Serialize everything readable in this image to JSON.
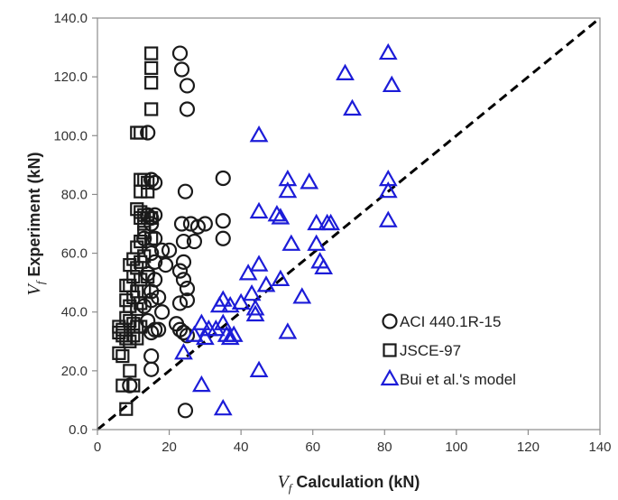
{
  "chart_data": {
    "type": "scatter",
    "title": "",
    "xlabel": {
      "var": "V",
      "sub": "f",
      "text": " Calculation (kN)"
    },
    "ylabel": {
      "var": "V",
      "sub": "f",
      "text": " Experiment (kN)"
    },
    "xlim": [
      0,
      140
    ],
    "ylim": [
      0,
      140
    ],
    "x_ticks": [
      "0",
      "20",
      "40",
      "60",
      "80",
      "100",
      "120",
      "140"
    ],
    "y_ticks": [
      "0.0",
      "20.0",
      "40.0",
      "60.0",
      "80.0",
      "100.0",
      "120.0",
      "140.0"
    ],
    "grid": false,
    "legend_position": "bottom-right",
    "reference_line": {
      "style": "dashed",
      "color": "#000000",
      "from": [
        0,
        0
      ],
      "to": [
        140,
        140
      ]
    },
    "series": [
      {
        "name": "ACI 440.1R-15",
        "marker": "circle",
        "color": "#1a1a1a",
        "points": [
          [
            23,
            128
          ],
          [
            23.5,
            122.5
          ],
          [
            25,
            117
          ],
          [
            25,
            109
          ],
          [
            14,
            101
          ],
          [
            15,
            85
          ],
          [
            16,
            84
          ],
          [
            24.5,
            81
          ],
          [
            35,
            85.5
          ],
          [
            14,
            73
          ],
          [
            15,
            72
          ],
          [
            16,
            73
          ],
          [
            15,
            70
          ],
          [
            23.5,
            70
          ],
          [
            26,
            70
          ],
          [
            28,
            69
          ],
          [
            30,
            70
          ],
          [
            35,
            71
          ],
          [
            13,
            65
          ],
          [
            16,
            65
          ],
          [
            24,
            64
          ],
          [
            27,
            64
          ],
          [
            35,
            65
          ],
          [
            15,
            60
          ],
          [
            18,
            61
          ],
          [
            20,
            61
          ],
          [
            16,
            57
          ],
          [
            19,
            56
          ],
          [
            24,
            57
          ],
          [
            14,
            53
          ],
          [
            16,
            51
          ],
          [
            23,
            54
          ],
          [
            24,
            51
          ],
          [
            25,
            48
          ],
          [
            15,
            47
          ],
          [
            15,
            44
          ],
          [
            13,
            42
          ],
          [
            17,
            45
          ],
          [
            23,
            43
          ],
          [
            25,
            44
          ],
          [
            18,
            40
          ],
          [
            14,
            37
          ],
          [
            15,
            33
          ],
          [
            16,
            34
          ],
          [
            17,
            34
          ],
          [
            22,
            36
          ],
          [
            23,
            34
          ],
          [
            24,
            33
          ],
          [
            25,
            32
          ],
          [
            15,
            25
          ],
          [
            15,
            20.5
          ],
          [
            9,
            15
          ],
          [
            24.5,
            6.5
          ]
        ]
      },
      {
        "name": "JSCE-97",
        "marker": "square",
        "color": "#1a1a1a",
        "points": [
          [
            15,
            128
          ],
          [
            15,
            123
          ],
          [
            15,
            118
          ],
          [
            15,
            109
          ],
          [
            11,
            101
          ],
          [
            12,
            101
          ],
          [
            12,
            85
          ],
          [
            13,
            85
          ],
          [
            14,
            84
          ],
          [
            12,
            81
          ],
          [
            14,
            81
          ],
          [
            11,
            75
          ],
          [
            12,
            74
          ],
          [
            13,
            73
          ],
          [
            12,
            72
          ],
          [
            14,
            72
          ],
          [
            13,
            70
          ],
          [
            15,
            72
          ],
          [
            13,
            67
          ],
          [
            15,
            65
          ],
          [
            11,
            62
          ],
          [
            12,
            64
          ],
          [
            10,
            58
          ],
          [
            12,
            57
          ],
          [
            13,
            59
          ],
          [
            9,
            56
          ],
          [
            11,
            55
          ],
          [
            10,
            52
          ],
          [
            12,
            51
          ],
          [
            14,
            52
          ],
          [
            8,
            49
          ],
          [
            9,
            49
          ],
          [
            11,
            47
          ],
          [
            13,
            47
          ],
          [
            8,
            44
          ],
          [
            10,
            45
          ],
          [
            12,
            43
          ],
          [
            9,
            42
          ],
          [
            11,
            41
          ],
          [
            8,
            38
          ],
          [
            9,
            37
          ],
          [
            10,
            36
          ],
          [
            11,
            35
          ],
          [
            12,
            35
          ],
          [
            6,
            35
          ],
          [
            7,
            34
          ],
          [
            6,
            33
          ],
          [
            7,
            32
          ],
          [
            8,
            31
          ],
          [
            9,
            30
          ],
          [
            10,
            32
          ],
          [
            11,
            31
          ],
          [
            6,
            26
          ],
          [
            7,
            25
          ],
          [
            9,
            20
          ],
          [
            10,
            15
          ],
          [
            7,
            15
          ],
          [
            8,
            7
          ]
        ]
      },
      {
        "name": "Bui et al.'s model",
        "marker": "triangle",
        "color": "#1c1cd8",
        "points": [
          [
            81,
            128
          ],
          [
            69,
            121
          ],
          [
            82,
            117
          ],
          [
            71,
            109
          ],
          [
            45,
            100
          ],
          [
            53,
            85
          ],
          [
            59,
            84
          ],
          [
            81,
            85
          ],
          [
            53,
            81
          ],
          [
            81,
            81
          ],
          [
            45,
            74
          ],
          [
            50,
            73
          ],
          [
            51,
            72
          ],
          [
            81,
            71
          ],
          [
            61,
            70
          ],
          [
            64,
            70
          ],
          [
            65,
            70
          ],
          [
            54,
            63
          ],
          [
            61,
            63
          ],
          [
            62,
            57
          ],
          [
            63,
            55
          ],
          [
            42,
            53
          ],
          [
            45,
            56
          ],
          [
            51,
            51
          ],
          [
            47,
            49
          ],
          [
            43,
            46
          ],
          [
            57,
            45
          ],
          [
            35,
            44
          ],
          [
            34,
            42
          ],
          [
            37,
            42
          ],
          [
            40,
            43
          ],
          [
            44,
            41
          ],
          [
            44,
            39
          ],
          [
            29,
            36
          ],
          [
            31,
            34
          ],
          [
            33,
            34
          ],
          [
            35,
            36
          ],
          [
            36,
            32
          ],
          [
            37,
            31
          ],
          [
            38,
            32
          ],
          [
            30,
            31
          ],
          [
            27,
            32
          ],
          [
            53,
            33
          ],
          [
            24,
            26
          ],
          [
            45,
            20
          ],
          [
            29,
            15
          ],
          [
            35,
            7
          ]
        ]
      }
    ]
  }
}
